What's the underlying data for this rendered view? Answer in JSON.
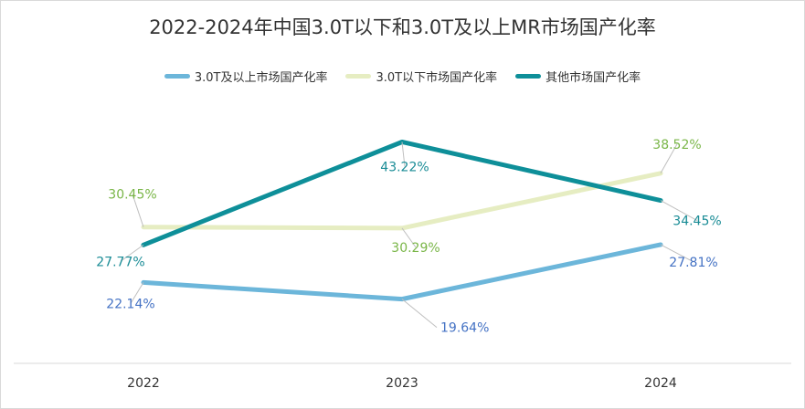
{
  "title": "2022-2024年中国3.0T以下和3.0T及以上MR市场国产化率",
  "chart_data": {
    "type": "line",
    "categories": [
      "2022",
      "2023",
      "2024"
    ],
    "ylim": [
      10,
      50
    ],
    "grid": false,
    "legend_position": "top-center",
    "series": [
      {
        "name": "3.0T及以上市场国产化率",
        "values": [
          22.14,
          19.64,
          27.81
        ],
        "labels": [
          "22.14%",
          "19.64%",
          "27.81%"
        ],
        "color": "#6cb6da",
        "label_color": "#4472c4"
      },
      {
        "name": "3.0T以下市场国产化率",
        "values": [
          30.45,
          30.29,
          38.52
        ],
        "labels": [
          "30.45%",
          "30.29%",
          "38.52%"
        ],
        "color": "#e6edc2",
        "label_color": "#7ab648"
      },
      {
        "name": "其他市场国产化率",
        "values": [
          27.77,
          43.22,
          34.45
        ],
        "labels": [
          "27.77%",
          "43.22%",
          "34.45%"
        ],
        "color": "#0e8f99",
        "label_color": "#1a8c96"
      }
    ]
  }
}
